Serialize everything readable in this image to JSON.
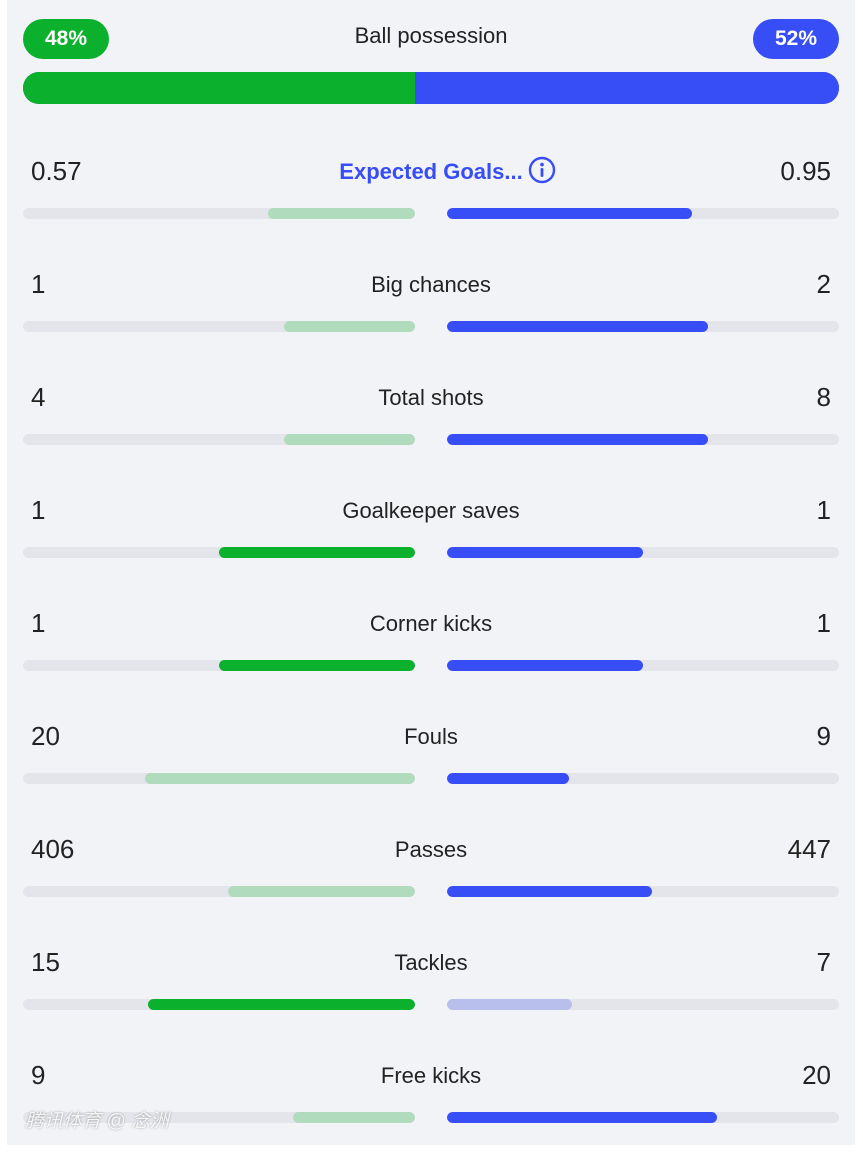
{
  "possession": {
    "title": "Ball possession",
    "home_pct_label": "48%",
    "away_pct_label": "52%",
    "home_fraction": 0.48,
    "away_fraction": 0.52,
    "home_color": "#0bb02c",
    "away_color": "#374df5"
  },
  "colors": {
    "home_strong": "#0bb02c",
    "home_light": "#b1dbbd",
    "away_strong": "#374df5",
    "away_light": "#b8bfec",
    "track": "#e4e5ea"
  },
  "stats": [
    {
      "label": "Expected Goals...",
      "home": "0.57",
      "away": "0.95",
      "home_fraction": 0.375,
      "away_fraction": 0.625,
      "home_strong": false,
      "away_strong": true,
      "link": true,
      "info_icon": "info-icon"
    },
    {
      "label": "Big chances",
      "home": "1",
      "away": "2",
      "home_fraction": 0.333,
      "away_fraction": 0.667,
      "home_strong": false,
      "away_strong": true
    },
    {
      "label": "Total shots",
      "home": "4",
      "away": "8",
      "home_fraction": 0.333,
      "away_fraction": 0.667,
      "home_strong": false,
      "away_strong": true
    },
    {
      "label": "Goalkeeper saves",
      "home": "1",
      "away": "1",
      "home_fraction": 0.5,
      "away_fraction": 0.5,
      "home_strong": true,
      "away_strong": true
    },
    {
      "label": "Corner kicks",
      "home": "1",
      "away": "1",
      "home_fraction": 0.5,
      "away_fraction": 0.5,
      "home_strong": true,
      "away_strong": true
    },
    {
      "label": "Fouls",
      "home": "20",
      "away": "9",
      "home_fraction": 0.69,
      "away_fraction": 0.31,
      "home_strong": false,
      "away_strong": true
    },
    {
      "label": "Passes",
      "home": "406",
      "away": "447",
      "home_fraction": 0.476,
      "away_fraction": 0.524,
      "home_strong": false,
      "away_strong": true
    },
    {
      "label": "Tackles",
      "home": "15",
      "away": "7",
      "home_fraction": 0.682,
      "away_fraction": 0.318,
      "home_strong": true,
      "away_strong": false
    },
    {
      "label": "Free kicks",
      "home": "9",
      "away": "20",
      "home_fraction": 0.31,
      "away_fraction": 0.69,
      "home_strong": false,
      "away_strong": true
    }
  ],
  "watermark": "腾讯体育 @ 念洲"
}
